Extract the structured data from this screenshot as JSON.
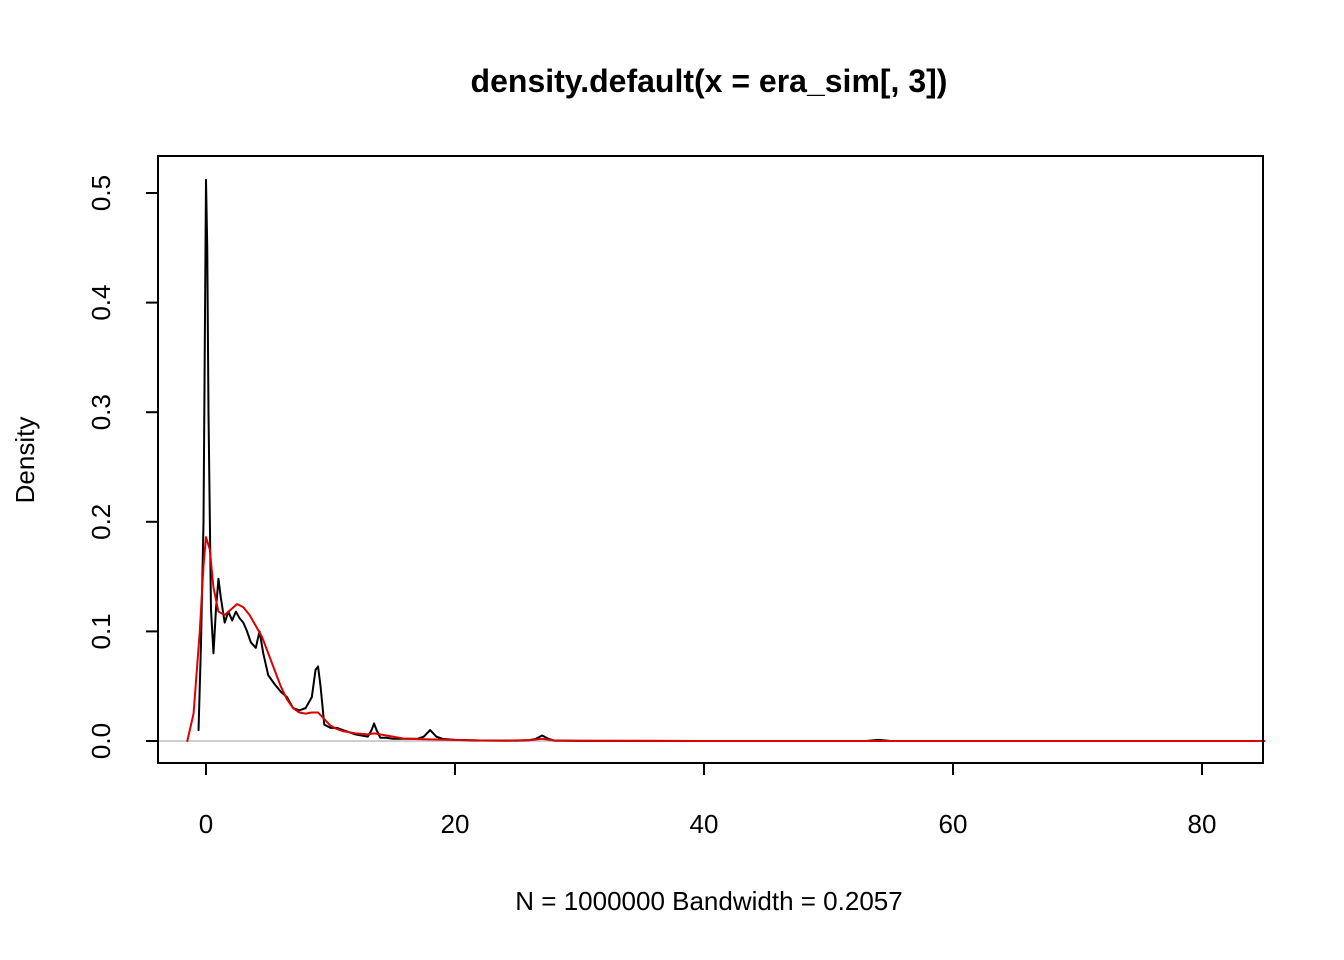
{
  "chart_data": {
    "type": "line",
    "title": "density.default(x = era_sim[, 3])",
    "xlabel": "N = 1000000   Bandwidth = 0.2057",
    "ylabel": "Density",
    "xlim": [
      -4,
      85
    ],
    "ylim": [
      -0.02,
      0.53
    ],
    "xticks": [
      0,
      20,
      40,
      60,
      80
    ],
    "yticks": [
      0.0,
      0.1,
      0.2,
      0.3,
      0.4,
      0.5
    ],
    "xtick_labels": [
      "0",
      "20",
      "40",
      "60",
      "80"
    ],
    "ytick_labels": [
      "0.0",
      "0.1",
      "0.2",
      "0.3",
      "0.4",
      "0.5"
    ],
    "grid": false,
    "zero_line": true,
    "zero_line_color": "#bebebe",
    "series": [
      {
        "color": "#000000",
        "x": [
          -0.6,
          -0.4,
          -0.2,
          0.0,
          0.1,
          0.2,
          0.4,
          0.6,
          0.8,
          1.0,
          1.2,
          1.5,
          1.8,
          2.1,
          2.4,
          2.7,
          3.0,
          3.3,
          3.6,
          4.0,
          4.3,
          4.6,
          5.0,
          5.5,
          6.0,
          6.5,
          7.0,
          7.5,
          8.0,
          8.5,
          8.8,
          9.0,
          9.2,
          9.5,
          10.0,
          10.5,
          11.0,
          11.5,
          12.0,
          12.5,
          13.0,
          13.3,
          13.5,
          13.7,
          14.0,
          14.5,
          15.0,
          15.5,
          16.0,
          16.5,
          17.0,
          17.5,
          18.0,
          18.5,
          19.0,
          20.0,
          22.0,
          24.0,
          25.0,
          26.0,
          26.5,
          27.0,
          27.5,
          28.0,
          30.0,
          35.0,
          40.0,
          45.0,
          50.0,
          53.0,
          54.0,
          55.0,
          60.0,
          70.0,
          80.0,
          85.0
        ],
        "y": [
          0.01,
          0.09,
          0.2,
          0.512,
          0.45,
          0.3,
          0.12,
          0.08,
          0.12,
          0.148,
          0.13,
          0.108,
          0.118,
          0.11,
          0.118,
          0.112,
          0.108,
          0.1,
          0.09,
          0.085,
          0.1,
          0.08,
          0.06,
          0.052,
          0.045,
          0.04,
          0.03,
          0.028,
          0.03,
          0.04,
          0.065,
          0.068,
          0.05,
          0.015,
          0.012,
          0.012,
          0.01,
          0.008,
          0.006,
          0.005,
          0.004,
          0.01,
          0.016,
          0.01,
          0.003,
          0.003,
          0.002,
          0.002,
          0.002,
          0.002,
          0.002,
          0.004,
          0.01,
          0.004,
          0.002,
          0.001,
          0.0005,
          0.0003,
          0.0003,
          0.0008,
          0.002,
          0.005,
          0.002,
          0.0003,
          0.0001,
          0.0001,
          0.0,
          0.0,
          0.0,
          0.0,
          0.001,
          0.0,
          0.0,
          0.0,
          0.0,
          0.0
        ]
      },
      {
        "color": "#dd0000",
        "x": [
          -1.5,
          -1.0,
          -0.5,
          -0.2,
          0.0,
          0.3,
          0.6,
          1.0,
          1.5,
          2.0,
          2.5,
          3.0,
          3.5,
          4.0,
          4.5,
          5.0,
          5.5,
          6.0,
          6.5,
          7.0,
          7.5,
          8.0,
          8.5,
          9.0,
          9.5,
          10.0,
          10.5,
          11.0,
          12.0,
          13.0,
          13.5,
          14.0,
          15.0,
          16.0,
          18.0,
          20.0,
          22.0,
          24.0,
          26.0,
          27.0,
          28.0,
          30.0,
          40.0,
          50.0,
          60.0,
          70.0,
          80.0,
          85.0
        ],
        "y": [
          0.0,
          0.025,
          0.1,
          0.16,
          0.186,
          0.175,
          0.14,
          0.118,
          0.115,
          0.12,
          0.125,
          0.122,
          0.115,
          0.105,
          0.095,
          0.08,
          0.065,
          0.05,
          0.038,
          0.03,
          0.026,
          0.025,
          0.026,
          0.026,
          0.02,
          0.014,
          0.011,
          0.009,
          0.007,
          0.006,
          0.007,
          0.006,
          0.004,
          0.002,
          0.0015,
          0.001,
          0.0005,
          0.0003,
          0.0008,
          0.002,
          0.0005,
          0.0002,
          0.0,
          0.0,
          0.0,
          0.0,
          0.0,
          0.0
        ]
      }
    ]
  }
}
